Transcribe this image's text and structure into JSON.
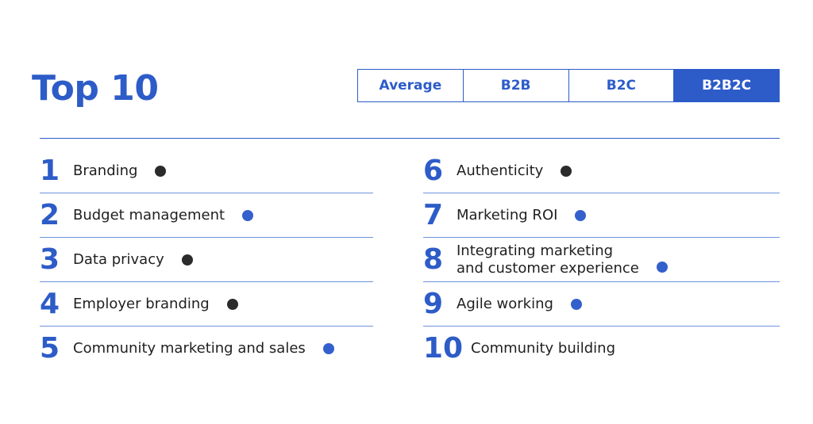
{
  "title": "Top 10",
  "tabs": [
    {
      "label": "Average",
      "active": false
    },
    {
      "label": "B2B",
      "active": false
    },
    {
      "label": "B2C",
      "active": false
    },
    {
      "label": "B2B2C",
      "active": true
    }
  ],
  "colors": {
    "accent": "#2d5cc8",
    "dot_dark": "#2b2b2b",
    "dot_blue": "#3360cc"
  },
  "left_items": [
    {
      "rank": "1",
      "label": "Branding",
      "dot": "dark"
    },
    {
      "rank": "2",
      "label": "Budget management",
      "dot": "blue"
    },
    {
      "rank": "3",
      "label": "Data privacy",
      "dot": "dark"
    },
    {
      "rank": "4",
      "label": "Employer branding",
      "dot": "dark"
    },
    {
      "rank": "5",
      "label": "Community marketing and sales",
      "dot": "blue"
    }
  ],
  "right_items": [
    {
      "rank": "6",
      "label": "Authenticity",
      "dot": "dark"
    },
    {
      "rank": "7",
      "label": "Marketing ROI",
      "dot": "blue"
    },
    {
      "rank": "8",
      "label_line1": "Integrating marketing",
      "label_line2": "and customer experience",
      "dot": "blue"
    },
    {
      "rank": "9",
      "label": "Agile working",
      "dot": "blue"
    },
    {
      "rank": "10",
      "label": "Community building",
      "dot": "none"
    }
  ]
}
